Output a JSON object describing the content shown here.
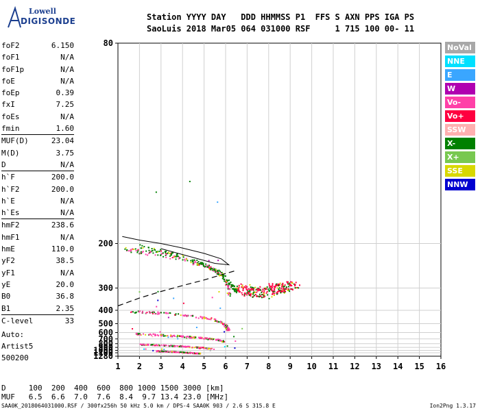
{
  "logo": {
    "line1": "Lowell",
    "line2": "DIGISONDE"
  },
  "header": {
    "line1": "Station YYYY DAY   DDD HHMMSS P1  FFS S AXN PPS IGA PS",
    "line2": "SaoLuis 2018 Mar05 064 031000 RSF     1 715 100 00- 11"
  },
  "params": [
    {
      "name": "foF2",
      "value": "6.150"
    },
    {
      "name": "foF1",
      "value": "N/A"
    },
    {
      "name": "foF1p",
      "value": "N/A"
    },
    {
      "name": "foE",
      "value": "N/A"
    },
    {
      "name": "foEp",
      "value": "0.39"
    },
    {
      "name": "fxI",
      "value": "7.25"
    },
    {
      "name": "foEs",
      "value": "N/A"
    },
    {
      "name": "fmin",
      "value": "1.60"
    },
    {
      "name": "MUF(D)",
      "value": "23.04",
      "sep": true
    },
    {
      "name": "M(D)",
      "value": "3.75"
    },
    {
      "name": "D",
      "value": "N/A"
    },
    {
      "name": "h`F",
      "value": "200.0",
      "sep": true
    },
    {
      "name": "h`F2",
      "value": "200.0"
    },
    {
      "name": "h`E",
      "value": "N/A"
    },
    {
      "name": "h`Es",
      "value": "N/A"
    },
    {
      "name": "hmF2",
      "value": "238.6",
      "sep": true
    },
    {
      "name": "hmF1",
      "value": "N/A"
    },
    {
      "name": "hmE",
      "value": "110.0"
    },
    {
      "name": "yF2",
      "value": "38.5"
    },
    {
      "name": "yF1",
      "value": "N/A"
    },
    {
      "name": "yE",
      "value": "20.0"
    },
    {
      "name": "B0",
      "value": "36.8"
    },
    {
      "name": "B1",
      "value": "2.35"
    },
    {
      "name": "C-level",
      "value": "33",
      "sep": true
    }
  ],
  "auto": {
    "l1": "Auto:",
    "l2": "Artist5",
    "l3": "500200"
  },
  "legend": [
    {
      "label": "NoVal",
      "color": "#a8a8a8"
    },
    {
      "label": "NNE",
      "color": "#00e0ff"
    },
    {
      "label": "E",
      "color": "#3aa6ff"
    },
    {
      "label": "W",
      "color": "#b000b0"
    },
    {
      "label": "Vo-",
      "color": "#ff40a8"
    },
    {
      "label": "Vo+",
      "color": "#ff0040"
    },
    {
      "label": "SSW",
      "color": "#ffb0b0"
    },
    {
      "label": "X-",
      "color": "#008000"
    },
    {
      "label": "X+",
      "color": "#78c850"
    },
    {
      "label": "SSE",
      "color": "#d8d800"
    },
    {
      "label": "NNW",
      "color": "#0000d0"
    }
  ],
  "bottom": {
    "d_line": "D     100  200  400  600  800 1000 1500 3000 [km]",
    "muf_line": "MUF   6.5  6.6  7.0  7.6  8.4  9.7 13.4 23.0 [MHz]"
  },
  "footer": {
    "left": "SAA0K_2018064031000.RSF / 300fx256h 50 kHz 5.0 km / DPS-4 SAA0K 903 / 2.6 S 315.8 E",
    "right": "Ion2Png 1.3.17"
  },
  "chart_data": {
    "type": "scatter",
    "xlabel": "",
    "ylabel": "",
    "xlim": [
      1,
      16
    ],
    "xticks": [
      1,
      2,
      3,
      4,
      5,
      6,
      7,
      8,
      9,
      10,
      11,
      12,
      13,
      14,
      15,
      16
    ],
    "y_scale": "reciprocal",
    "ylim": [
      80,
      1280
    ],
    "yticks": [
      80,
      200,
      300,
      400,
      500,
      600,
      700,
      800,
      900,
      1000,
      1100,
      1280
    ],
    "grid": true,
    "traces": [
      {
        "name": "O-trace 1st hop",
        "color": "#ff40a8",
        "points": [
          [
            1.3,
            208
          ],
          [
            2,
            212
          ],
          [
            3,
            218
          ],
          [
            4,
            226
          ],
          [
            5,
            238
          ],
          [
            5.6,
            252
          ],
          [
            5.9,
            270
          ],
          [
            6.1,
            300
          ],
          [
            6.15,
            330
          ]
        ]
      },
      {
        "name": "X-trace 1st hop",
        "color": "#008000",
        "points": [
          [
            2,
            204
          ],
          [
            3,
            212
          ],
          [
            4,
            222
          ],
          [
            5,
            236
          ],
          [
            5.7,
            255
          ],
          [
            6.2,
            285
          ],
          [
            6.5,
            310
          ]
        ]
      },
      {
        "name": "2nd hop",
        "color": "#ff40a8",
        "points": [
          [
            1.6,
            405
          ],
          [
            2.5,
            410
          ],
          [
            3.5,
            420
          ],
          [
            4.5,
            435
          ],
          [
            5.3,
            455
          ],
          [
            5.8,
            485
          ],
          [
            6.0,
            520
          ],
          [
            6.1,
            560
          ]
        ]
      },
      {
        "name": "3rd hop",
        "color": "#ff40a8",
        "points": [
          [
            1.8,
            610
          ],
          [
            2.8,
            625
          ],
          [
            3.8,
            645
          ],
          [
            4.8,
            670
          ],
          [
            5.5,
            700
          ],
          [
            5.9,
            740
          ]
        ]
      },
      {
        "name": "4th hop",
        "color": "#ff40a8",
        "points": [
          [
            2.0,
            805
          ],
          [
            3.0,
            825
          ],
          [
            4.0,
            855
          ],
          [
            4.8,
            890
          ],
          [
            5.4,
            930
          ]
        ]
      },
      {
        "name": "5th hop",
        "color": "#ff40a8",
        "points": [
          [
            2.8,
            1010
          ],
          [
            3.5,
            1035
          ],
          [
            4.2,
            1070
          ],
          [
            4.8,
            1110
          ]
        ]
      },
      {
        "name": "Es cloud",
        "color": "#ff0040",
        "points": [
          [
            6.6,
            300
          ],
          [
            7.2,
            310
          ],
          [
            7.8,
            320
          ],
          [
            8.3,
            300
          ],
          [
            8.8,
            295
          ],
          [
            9.2,
            290
          ]
        ]
      }
    ],
    "profile": [
      [
        1.2,
        190
      ],
      [
        2,
        195
      ],
      [
        3,
        200
      ],
      [
        4,
        207
      ],
      [
        5,
        216
      ],
      [
        5.8,
        226
      ],
      [
        6.15,
        238
      ],
      [
        5.5,
        235
      ],
      [
        4,
        218
      ],
      [
        3,
        208
      ]
    ],
    "dashed_line": [
      [
        1.0,
        375
      ],
      [
        2,
        338
      ],
      [
        3,
        312
      ],
      [
        4,
        292
      ],
      [
        5,
        275
      ],
      [
        6.0,
        258
      ],
      [
        6.4,
        252
      ]
    ]
  }
}
